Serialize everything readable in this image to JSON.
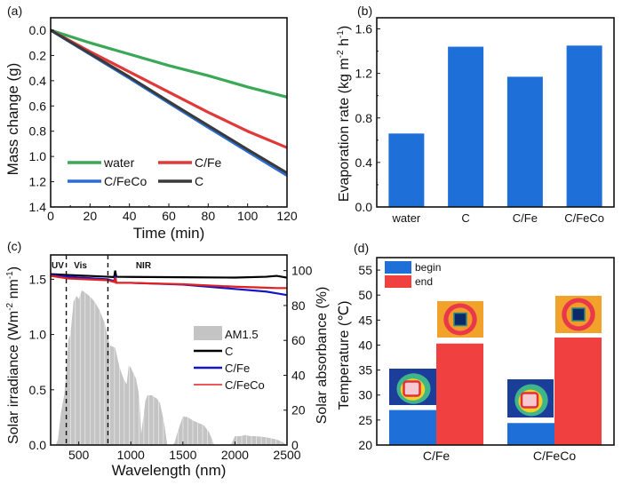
{
  "chart_data": [
    {
      "panel": "(a)",
      "type": "line",
      "xlabel": "Time (min)",
      "ylabel": "Mass change (g)",
      "xlim": [
        0,
        120
      ],
      "ylim": [
        0,
        1.4
      ],
      "y_inverted": true,
      "xticks": [
        0,
        20,
        40,
        60,
        80,
        100,
        120
      ],
      "yticks": [
        0.0,
        0.2,
        0.4,
        0.6,
        0.8,
        1.0,
        1.2,
        1.4
      ],
      "ytick_labels": [
        "0.0",
        "0.2",
        "0.4",
        "0.6",
        "0.8",
        "1.0",
        "1.2",
        "1.4"
      ],
      "legend_position": "bottom-left",
      "x": [
        0,
        20,
        40,
        60,
        80,
        100,
        120
      ],
      "series": [
        {
          "name": "water",
          "color": "#3aa857",
          "values": [
            0,
            0.1,
            0.19,
            0.28,
            0.36,
            0.45,
            0.53
          ]
        },
        {
          "name": "C/Fe",
          "color": "#e0393a",
          "values": [
            0,
            0.17,
            0.33,
            0.49,
            0.65,
            0.8,
            0.93
          ]
        },
        {
          "name": "C/FeCo",
          "color": "#2a6dd1",
          "values": [
            0,
            0.19,
            0.38,
            0.575,
            0.77,
            0.96,
            1.15
          ]
        },
        {
          "name": "C",
          "color": "#3a3a3a",
          "values": [
            0,
            0.185,
            0.37,
            0.565,
            0.755,
            0.945,
            1.13
          ]
        }
      ],
      "legend_order": [
        "water",
        "C/Fe",
        "C/FeCo",
        "C"
      ]
    },
    {
      "panel": "(b)",
      "type": "bar",
      "xlabel": "",
      "ylabel": "Evaporation rate (kg m⁻² h⁻¹)",
      "ylabel_parts": {
        "base": "Evaporation rate (kg m",
        "sup1": "-2",
        "mid": " h",
        "sup2": "-1",
        "end": ")"
      },
      "categories": [
        "water",
        "C",
        "C/Fe",
        "C/FeCo"
      ],
      "values": [
        0.66,
        1.44,
        1.17,
        1.45
      ],
      "ylim": [
        0,
        1.7
      ],
      "yticks": [
        0.0,
        0.4,
        0.8,
        1.2,
        1.6
      ],
      "ytick_labels": [
        "0.0",
        "0.4",
        "0.8",
        "1.2",
        "1.6"
      ],
      "color": "#1f6fd8"
    },
    {
      "panel": "(c)",
      "type": "area",
      "xlabel": "Wavelength (nm)",
      "ylabel_left_parts": {
        "base": "Solar irradiance (Wm",
        "sup1": "-2",
        "mid": " nm",
        "sup2": "-1",
        "end": ")"
      },
      "ylabel_right": "Solar absorbance (%)",
      "xlim": [
        230,
        2500
      ],
      "ylim_left": [
        0,
        1.72
      ],
      "ylim_right": [
        0,
        109
      ],
      "xticks": [
        500,
        1000,
        1500,
        2000,
        2500
      ],
      "yticks_left": [
        0.0,
        0.5,
        1.0,
        1.5
      ],
      "ytick_labels_left": [
        "0.0",
        "0.5",
        "1.0",
        "1.5"
      ],
      "yticks_right": [
        0,
        20,
        40,
        60,
        80,
        100
      ],
      "region_labels": [
        {
          "label": "UV",
          "from": 230,
          "to": 380
        },
        {
          "label": "Vis",
          "from": 380,
          "to": 780
        },
        {
          "label": "NIR",
          "from": 780,
          "to": 2500
        }
      ],
      "region_boundaries": [
        380,
        780
      ],
      "legend_position": "center-right",
      "am15": {
        "name": "AM1.5",
        "color": "#c4c4c4",
        "x": [
          280,
          300,
          330,
          360,
          380,
          400,
          420,
          450,
          480,
          500,
          530,
          560,
          600,
          650,
          700,
          750,
          780,
          800,
          850,
          880,
          900,
          930,
          960,
          980,
          1000,
          1050,
          1080,
          1100,
          1120,
          1140,
          1160,
          1200,
          1250,
          1280,
          1320,
          1350,
          1380,
          1400,
          1420,
          1450,
          1500,
          1550,
          1600,
          1650,
          1700,
          1750,
          1780,
          1800,
          1820,
          1900,
          1950,
          1970,
          2000,
          2050,
          2100,
          2150,
          2200,
          2300,
          2400,
          2450,
          2500
        ],
        "values": [
          0,
          0.05,
          0.3,
          0.45,
          0.65,
          0.95,
          1.0,
          1.3,
          1.35,
          1.32,
          1.4,
          1.38,
          1.35,
          1.3,
          1.22,
          1.1,
          0.97,
          0.9,
          0.88,
          0.75,
          0.68,
          0.6,
          0.55,
          0.72,
          0.7,
          0.6,
          0.45,
          0.1,
          0.25,
          0.4,
          0.45,
          0.45,
          0.42,
          0.38,
          0.2,
          0.0,
          0.0,
          0.0,
          0.02,
          0.12,
          0.26,
          0.25,
          0.22,
          0.2,
          0.18,
          0.12,
          0.05,
          0.0,
          0.0,
          0.0,
          0.0,
          0.02,
          0.08,
          0.08,
          0.09,
          0.08,
          0.08,
          0.07,
          0.05,
          0.03,
          0.0
        ]
      },
      "absorbance_series": [
        {
          "name": "C",
          "color": "#000000",
          "x": [
            230,
            400,
            780,
            840,
            850,
            860,
            1000,
            1500,
            2000,
            2300,
            2400,
            2500
          ],
          "values": [
            98,
            97.5,
            96.5,
            96.3,
            100,
            96.5,
            96.4,
            96.2,
            96,
            96.5,
            97,
            96
          ]
        },
        {
          "name": "C/Fe",
          "color": "#1414c8",
          "x": [
            230,
            400,
            780,
            840,
            850,
            860,
            1000,
            1500,
            2000,
            2300,
            2400,
            2500
          ],
          "values": [
            97.5,
            96.5,
            95,
            94,
            97,
            93,
            93,
            92,
            89.5,
            88,
            87,
            86
          ]
        },
        {
          "name": "C/FeCo",
          "color": "#e02020",
          "x": [
            230,
            400,
            780,
            840,
            850,
            860,
            1000,
            1500,
            2000,
            2300,
            2400,
            2500
          ],
          "values": [
            97,
            95.5,
            94.5,
            93.5,
            96,
            93,
            93,
            92.2,
            90.8,
            90.2,
            90,
            90
          ]
        }
      ],
      "legend_order": [
        "AM1.5",
        "C",
        "C/Fe",
        "C/FeCo"
      ]
    },
    {
      "panel": "(d)",
      "type": "bar",
      "xlabel": "",
      "ylabel": "Temperature (℃)",
      "categories": [
        "C/Fe",
        "C/FeCo"
      ],
      "ylim": [
        20,
        57.5
      ],
      "yticks": [
        20,
        25,
        30,
        35,
        40,
        45,
        50,
        55
      ],
      "series": [
        {
          "name": "begin",
          "color": "#1f6fd8",
          "values": [
            27.0,
            24.4
          ]
        },
        {
          "name": "end",
          "color": "#f04040",
          "values": [
            40.3,
            41.5
          ]
        }
      ],
      "legend_position": "top-left",
      "annotations": "infrared thermal images above each bar"
    }
  ]
}
